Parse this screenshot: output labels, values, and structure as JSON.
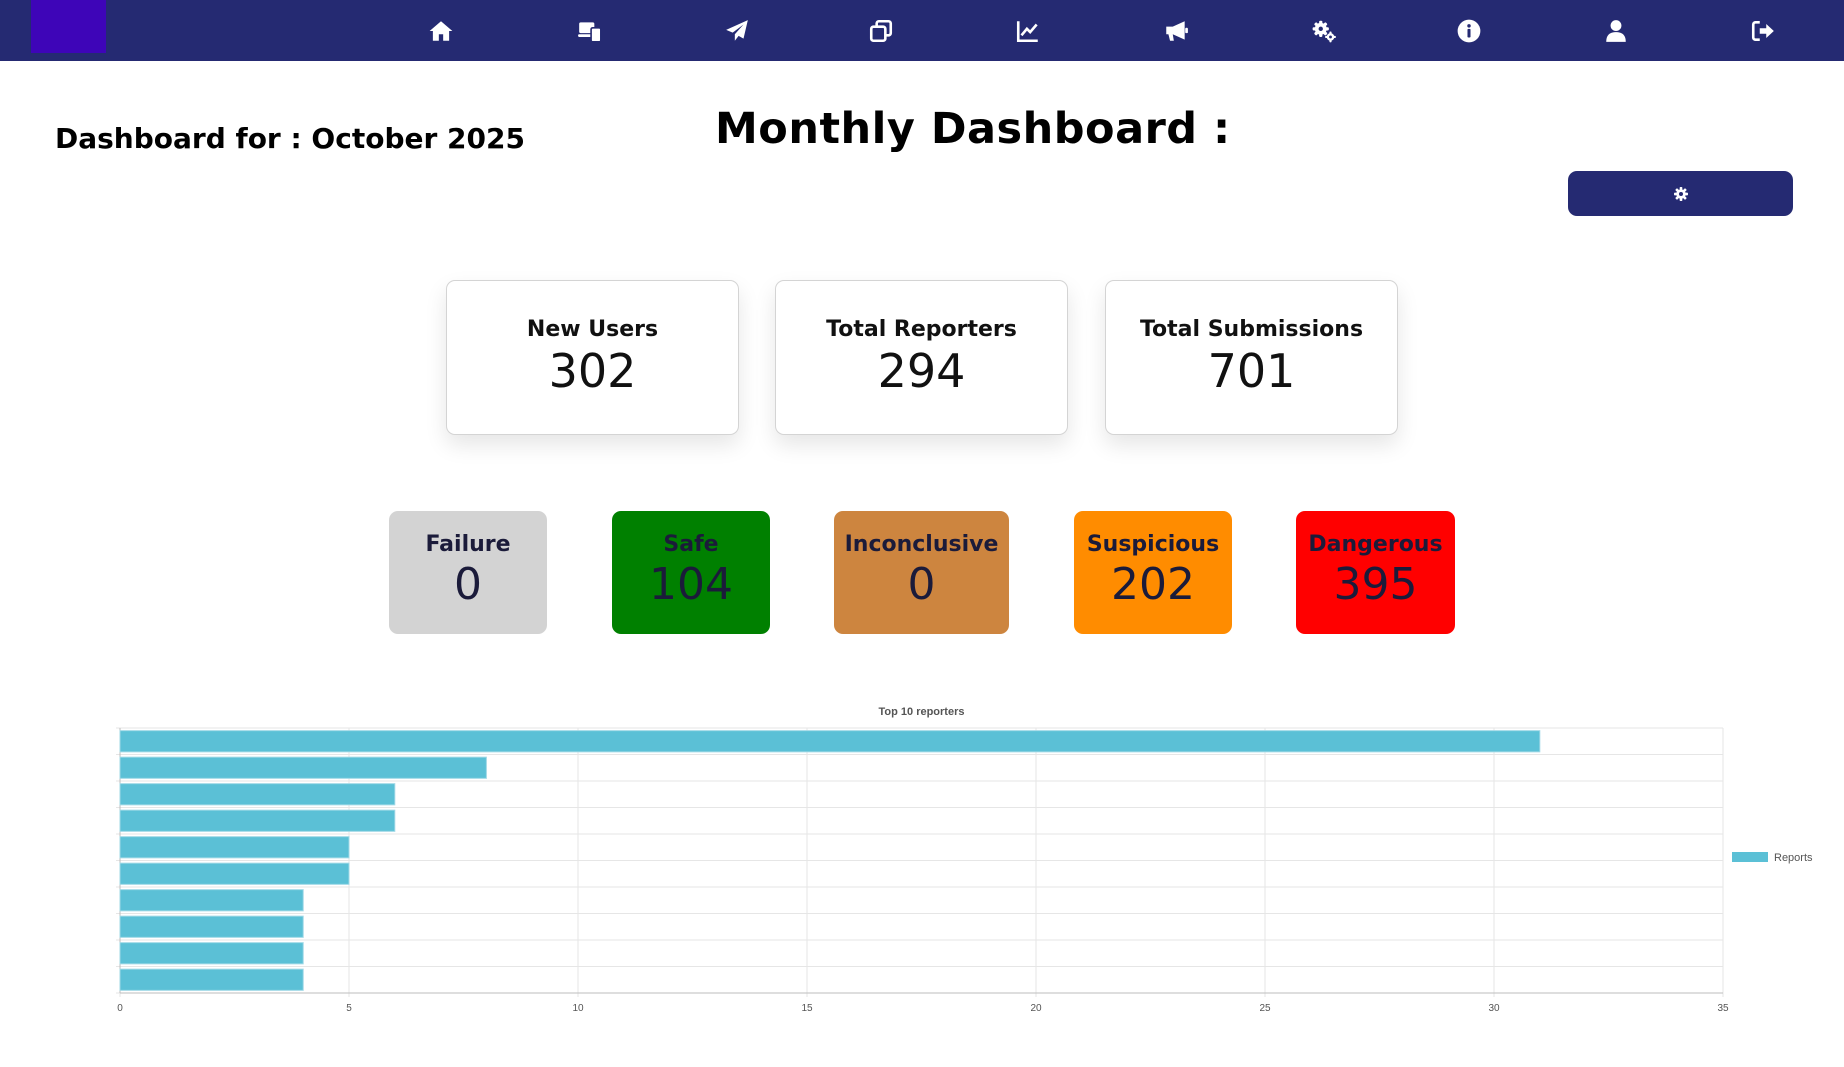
{
  "nav": {
    "items": [
      {
        "icon": "home-icon"
      },
      {
        "icon": "devices-icon"
      },
      {
        "icon": "paper-plane-icon"
      },
      {
        "icon": "windows-icon"
      },
      {
        "icon": "line-chart-icon"
      },
      {
        "icon": "megaphone-icon"
      },
      {
        "icon": "gears-icon"
      },
      {
        "icon": "info-icon"
      },
      {
        "icon": "user-icon"
      },
      {
        "icon": "logout-icon"
      }
    ],
    "color": "#252a72",
    "logo_color": "#3e05b8"
  },
  "header": {
    "dashboard_for": "Dashboard for : October 2025",
    "title": "Monthly Dashboard :"
  },
  "settings_button": {
    "icon": "gear-icon"
  },
  "stats": [
    {
      "label": "New Users",
      "value": "302"
    },
    {
      "label": "Total Reporters",
      "value": "294"
    },
    {
      "label": "Total Submissions",
      "value": "701"
    }
  ],
  "verdicts": [
    {
      "label": "Failure",
      "value": "0",
      "color": "#d3d3d3"
    },
    {
      "label": "Safe",
      "value": "104",
      "color": "#008000"
    },
    {
      "label": "Inconclusive",
      "value": "0",
      "color": "#cd853f"
    },
    {
      "label": "Suspicious",
      "value": "202",
      "color": "#ff8c00"
    },
    {
      "label": "Dangerous",
      "value": "395",
      "color": "#ff0000"
    }
  ],
  "chart_data": {
    "type": "bar",
    "orientation": "horizontal",
    "title": "Top 10 reporters",
    "categories": [
      "",
      "",
      "",
      "",
      "",
      "",
      "",
      "",
      "",
      ""
    ],
    "series": [
      {
        "name": "Reports",
        "values": [
          31,
          8,
          6,
          6,
          5,
          5,
          4,
          4,
          4,
          4
        ],
        "color": "#5bc0d6"
      }
    ],
    "xlim": [
      0,
      35
    ],
    "xticks": [
      "0",
      "5",
      "10",
      "15",
      "20",
      "25",
      "30",
      "35"
    ],
    "grid": true,
    "legend": "right"
  }
}
